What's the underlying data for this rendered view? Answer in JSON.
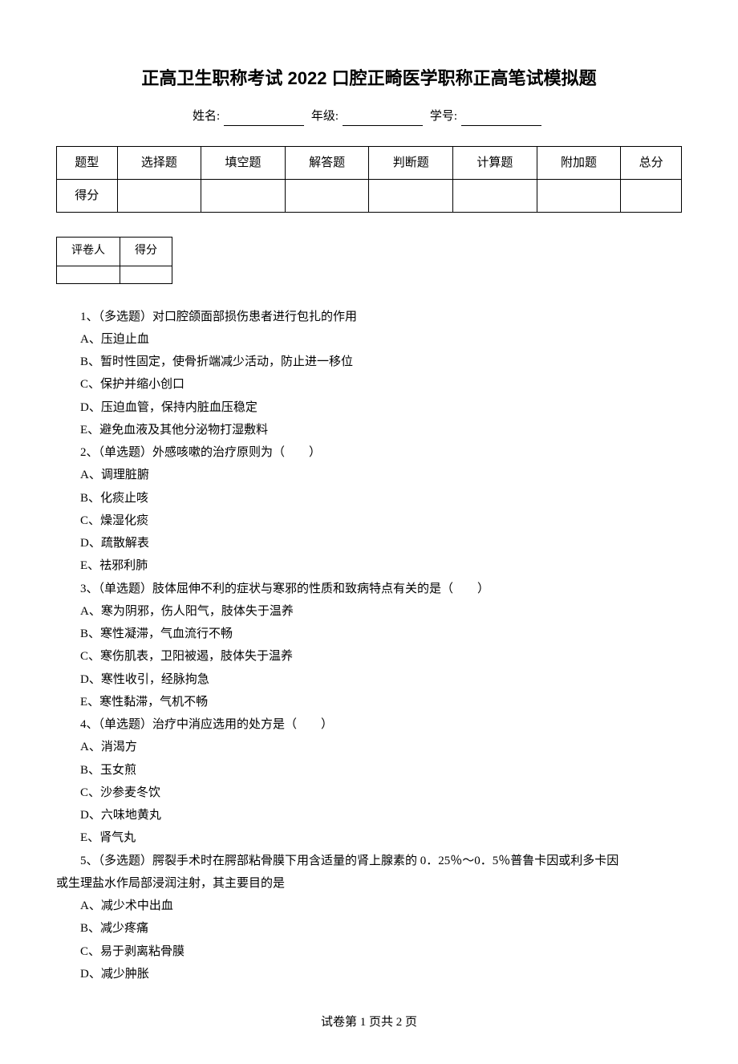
{
  "title": "正高卫生职称考试 2022 口腔正畸医学职称正高笔试模拟题",
  "info": {
    "name_label": "姓名:",
    "grade_label": "年级:",
    "id_label": "学号:"
  },
  "score_table": {
    "headers": [
      "题型",
      "选择题",
      "填空题",
      "解答题",
      "判断题",
      "计算题",
      "附加题",
      "总分"
    ],
    "row_label": "得分"
  },
  "grader_table": {
    "headers": [
      "评卷人",
      "得分"
    ]
  },
  "questions": [
    {
      "num": "1、",
      "type": "（多选题）",
      "text": "对口腔颌面部损伤患者进行包扎的作用",
      "options": [
        "A、压迫止血",
        "B、暂时性固定，使骨折端减少活动，防止进一移位",
        "C、保护并缩小创口",
        "D、压迫血管，保持内脏血压稳定",
        "E、避免血液及其他分泌物打湿敷料"
      ]
    },
    {
      "num": "2、",
      "type": "（单选题）",
      "text": "外感咳嗽的治疗原则为（　　）",
      "options": [
        "A、调理脏腑",
        "B、化痰止咳",
        "C、燥湿化痰",
        "D、疏散解表",
        "E、祛邪利肺"
      ]
    },
    {
      "num": "3、",
      "type": "（单选题）",
      "text": "肢体屈伸不利的症状与寒邪的性质和致病特点有关的是（　　）",
      "options": [
        "A、寒为阴邪，伤人阳气，肢体失于温养",
        "B、寒性凝滞，气血流行不畅",
        "C、寒伤肌表，卫阳被遏，肢体失于温养",
        "D、寒性收引，经脉拘急",
        "E、寒性黏滞，气机不畅"
      ]
    },
    {
      "num": "4、",
      "type": "（单选题）",
      "text": "治疗中消应选用的处方是（　　）",
      "options": [
        "A、消渴方",
        "B、玉女煎",
        "C、沙参麦冬饮",
        "D、六味地黄丸",
        "E、肾气丸"
      ]
    },
    {
      "num": "5、",
      "type": "（多选题）",
      "text": "腭裂手术时在腭部粘骨膜下用含适量的肾上腺素的 0．25％～0．5％普鲁卡因或利多卡因",
      "continuation": "或生理盐水作局部浸润注射，其主要目的是",
      "options": [
        "A、减少术中出血",
        "B、减少疼痛",
        "C、易于剥离粘骨膜",
        "D、减少肿胀"
      ]
    }
  ],
  "footer": "试卷第 1 页共 2 页"
}
